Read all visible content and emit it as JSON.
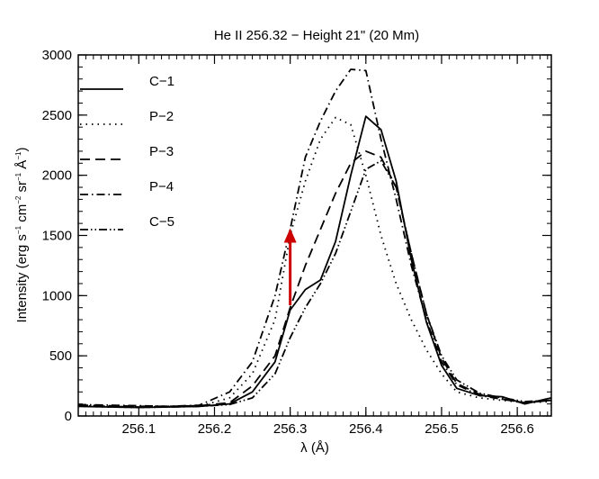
{
  "chart_data": {
    "type": "line",
    "title": "He II 256.32 − Height 21\" (20 Mm)",
    "xlabel": "λ (Å)",
    "ylabel_parts": {
      "a": "Intensity (erg s",
      "e1": "−1",
      "b": " cm",
      "e2": "−2",
      "c": " sr",
      "e3": "−1",
      "d": " Å",
      "e4": "−1",
      "e": ")"
    },
    "xlim": [
      256.02,
      256.645
    ],
    "ylim": [
      0,
      3000
    ],
    "xticks": [
      256.1,
      256.2,
      256.3,
      256.4,
      256.5,
      256.6
    ],
    "xtick_labels": [
      "256.1",
      "256.2",
      "256.3",
      "256.4",
      "256.5",
      "256.6"
    ],
    "xminor_step": 0.01,
    "yticks": [
      0,
      500,
      1000,
      1500,
      2000,
      2500,
      3000
    ],
    "ytick_labels": [
      "0",
      "500",
      "1000",
      "1500",
      "2000",
      "2500",
      "3000"
    ],
    "yminor_step": 100,
    "legend_position": "top-left",
    "series": [
      {
        "name": "C−1",
        "dash": "solid",
        "x": [
          256.02,
          256.06,
          256.1,
          256.14,
          256.18,
          256.22,
          256.25,
          256.28,
          256.3,
          256.32,
          256.34,
          256.36,
          256.38,
          256.4,
          256.42,
          256.44,
          256.46,
          256.48,
          256.5,
          256.52,
          256.55,
          256.58,
          256.61,
          256.645
        ],
        "values": [
          80,
          75,
          70,
          75,
          80,
          100,
          200,
          450,
          880,
          1050,
          1130,
          1450,
          2000,
          2490,
          2380,
          1950,
          1300,
          780,
          420,
          230,
          170,
          160,
          100,
          150
        ]
      },
      {
        "name": "P−2",
        "dash": "dotted",
        "x": [
          256.02,
          256.06,
          256.1,
          256.14,
          256.18,
          256.22,
          256.25,
          256.28,
          256.3,
          256.32,
          256.34,
          256.36,
          256.38,
          256.4,
          256.42,
          256.44,
          256.46,
          256.48,
          256.5,
          256.52,
          256.55,
          256.58,
          256.61,
          256.645
        ],
        "values": [
          80,
          75,
          70,
          75,
          80,
          150,
          350,
          800,
          1500,
          1950,
          2300,
          2480,
          2420,
          2000,
          1500,
          1100,
          800,
          550,
          350,
          200,
          150,
          130,
          110,
          120
        ]
      },
      {
        "name": "P−3",
        "dash": "dashed",
        "x": [
          256.02,
          256.06,
          256.1,
          256.14,
          256.18,
          256.22,
          256.25,
          256.28,
          256.3,
          256.32,
          256.34,
          256.36,
          256.38,
          256.4,
          256.42,
          256.44,
          256.46,
          256.48,
          256.5,
          256.52,
          256.55,
          256.58,
          256.61,
          256.645
        ],
        "values": [
          90,
          85,
          80,
          80,
          85,
          110,
          250,
          500,
          900,
          1250,
          1550,
          1850,
          2100,
          2200,
          2150,
          1900,
          1350,
          850,
          480,
          270,
          180,
          140,
          110,
          130
        ]
      },
      {
        "name": "P−4",
        "dash": "dashdot",
        "x": [
          256.02,
          256.06,
          256.1,
          256.14,
          256.18,
          256.22,
          256.25,
          256.28,
          256.3,
          256.32,
          256.34,
          256.36,
          256.38,
          256.4,
          256.42,
          256.44,
          256.46,
          256.48,
          256.5,
          256.52,
          256.55,
          256.58,
          256.61,
          256.645
        ],
        "values": [
          95,
          90,
          85,
          80,
          90,
          200,
          450,
          1000,
          1550,
          2150,
          2450,
          2700,
          2880,
          2870,
          2300,
          1800,
          1250,
          800,
          450,
          260,
          170,
          140,
          110,
          130
        ]
      },
      {
        "name": "C−5",
        "dash": "dashdotdot",
        "x": [
          256.02,
          256.06,
          256.1,
          256.14,
          256.18,
          256.22,
          256.25,
          256.28,
          256.3,
          256.32,
          256.34,
          256.36,
          256.38,
          256.4,
          256.42,
          256.44,
          256.46,
          256.48,
          256.5,
          256.52,
          256.55,
          256.58,
          256.61,
          256.645
        ],
        "values": [
          85,
          80,
          75,
          75,
          80,
          95,
          150,
          350,
          650,
          900,
          1100,
          1350,
          1700,
          2050,
          2120,
          1900,
          1350,
          850,
          500,
          300,
          190,
          150,
          120,
          130
        ]
      }
    ],
    "annotation_arrow": {
      "color": "#cc0000",
      "x": 256.3,
      "y_from": 920,
      "y_to": 1560
    }
  }
}
